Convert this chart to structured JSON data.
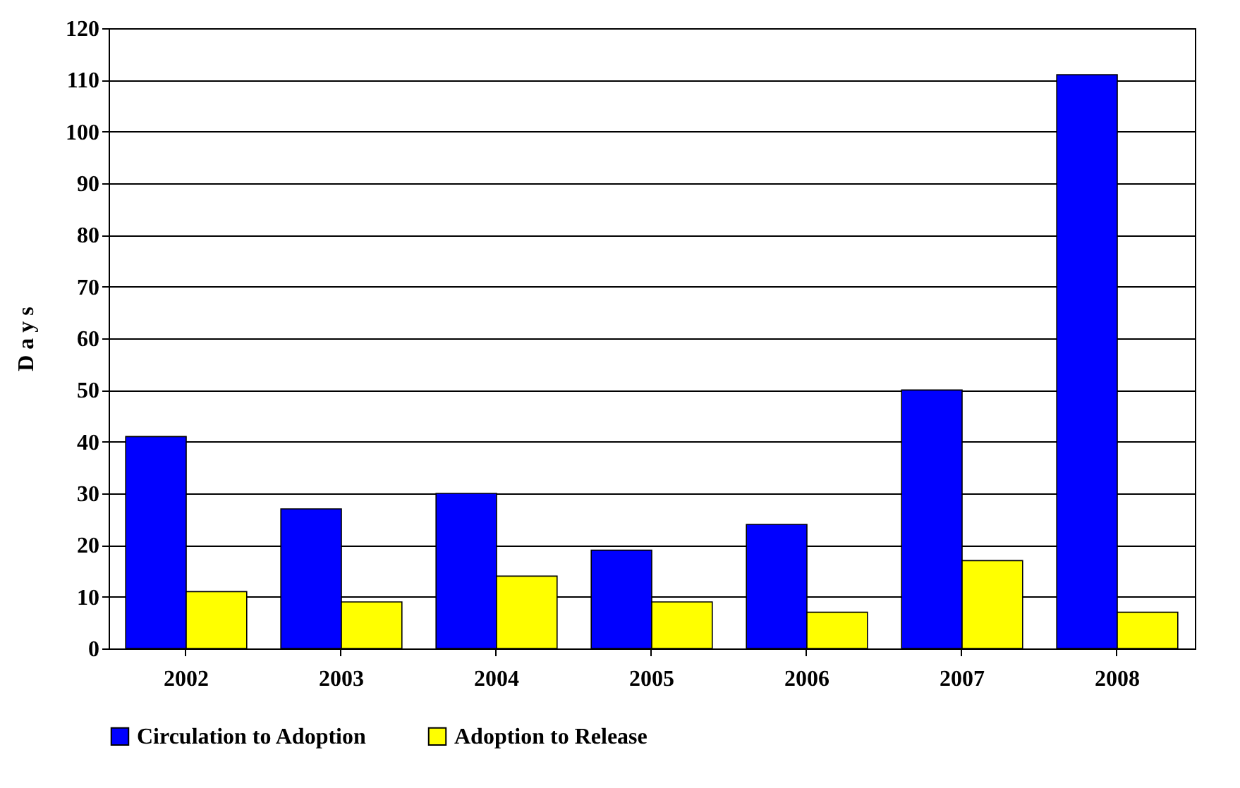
{
  "chart_data": {
    "type": "bar",
    "ylabel": "D a y s",
    "categories": [
      "2002",
      "2003",
      "2004",
      "2005",
      "2006",
      "2007",
      "2008"
    ],
    "series": [
      {
        "name": "Circulation to Adoption",
        "color": "#0000ff",
        "values": [
          41,
          27,
          30,
          19,
          24,
          50,
          111
        ]
      },
      {
        "name": "Adoption to Release",
        "color": "#ffff00",
        "values": [
          11,
          9,
          14,
          9,
          7,
          17,
          7
        ]
      }
    ],
    "ylim": [
      0,
      120
    ],
    "yticks": [
      0,
      10,
      20,
      30,
      40,
      50,
      60,
      70,
      80,
      90,
      100,
      110,
      120
    ],
    "grid": "y",
    "legend": "bottom"
  }
}
